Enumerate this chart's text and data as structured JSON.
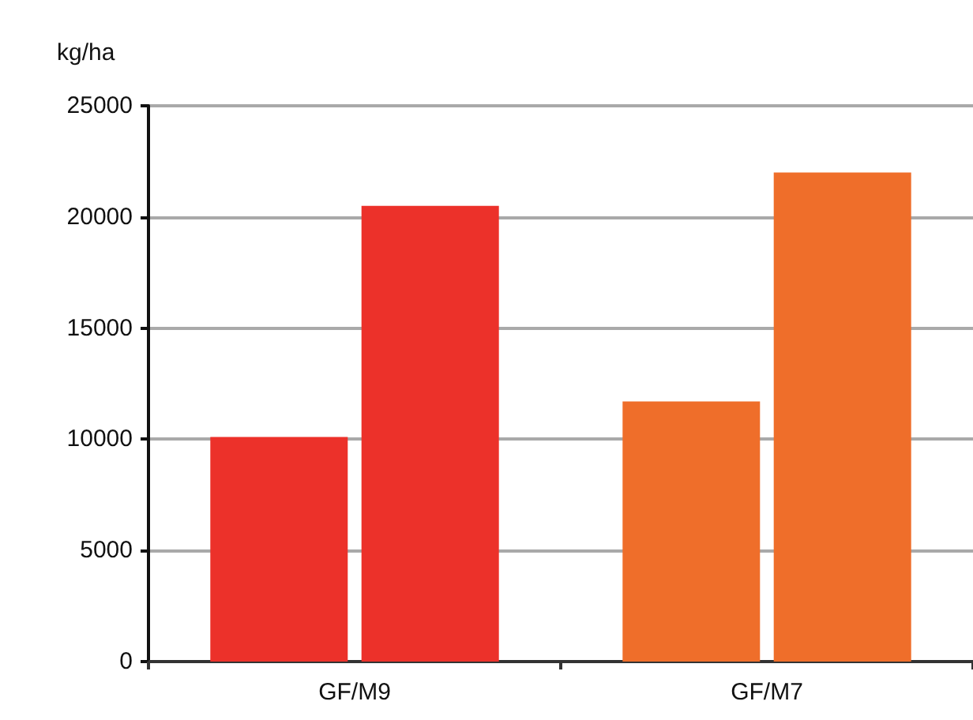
{
  "chart_data": {
    "type": "bar",
    "ylabel": "kg/ha",
    "categories": [
      "GF/M9",
      "GF/M7"
    ],
    "series": [
      {
        "colors": [
          "#ec312a",
          "#ef6e2a"
        ],
        "values": [
          10100,
          11700
        ]
      },
      {
        "colors": [
          "#ec312a",
          "#ef6e2a"
        ],
        "values": [
          20500,
          22000
        ]
      }
    ],
    "ylim": [
      0,
      25000
    ],
    "yticks": [
      0,
      5000,
      10000,
      15000,
      20000,
      25000
    ],
    "grid": "y"
  }
}
